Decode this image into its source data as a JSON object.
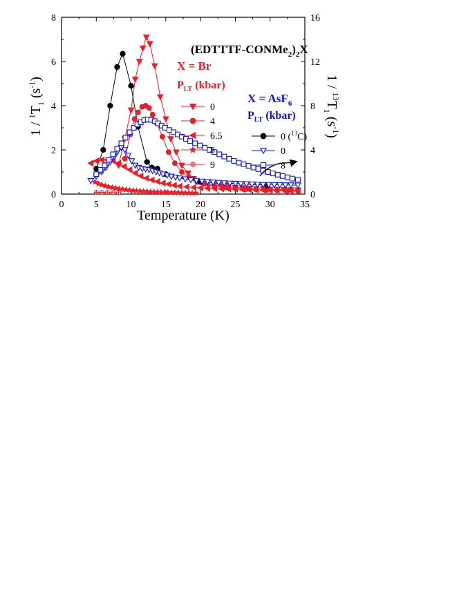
{
  "chart_data": {
    "type": "scatter",
    "title": "(EDTTTF-CONMe2)2X",
    "xlabel": "Temperature (K)",
    "ylabel": "1 / 1T1 (s-1)",
    "ylabel_right": "1 / 13T1 (s-1)",
    "xlim": [
      0,
      35
    ],
    "ylim": [
      0,
      8
    ],
    "ylim_right": [
      0,
      16
    ],
    "x_ticks": [
      "0",
      "5",
      "10",
      "15",
      "20",
      "25",
      "30",
      "35"
    ],
    "y_ticks": [
      "0",
      "2",
      "4",
      "6",
      "8"
    ],
    "y_ticks_right": [
      "0",
      "4",
      "8",
      "12",
      "16"
    ],
    "grid": false,
    "legend_groups": [
      {
        "title": "X = Br",
        "subtitle": "PLT (kbar)",
        "color": "#ee1c25"
      },
      {
        "title": "X = AsF6",
        "subtitle": "PLT (kbar)",
        "color": "#0a12e6"
      }
    ],
    "series": [
      {
        "name": "0",
        "group": "X = Br",
        "axis": "left",
        "color": "#ee1c25",
        "marker": "triangle-down",
        "filled": true,
        "x": [
          8.2,
          9.1,
          10.0,
          10.6,
          11.2,
          11.7,
          12.2,
          12.7,
          13.4,
          14.2,
          15.0,
          15.7,
          16.5,
          17.3,
          18.2,
          19.0,
          20.0,
          21.0,
          22.0,
          23.0,
          24.0,
          25.0,
          26.0,
          27.0,
          28.0,
          29.0,
          30.0,
          31.0,
          32.0,
          33.0,
          34.0
        ],
        "y": [
          1.3,
          2.5,
          3.8,
          5.2,
          6.0,
          6.6,
          7.1,
          6.8,
          5.8,
          4.4,
          3.4,
          2.5,
          1.9,
          1.3,
          0.95,
          0.7,
          0.55,
          0.45,
          0.4,
          0.36,
          0.34,
          0.3,
          0.28,
          0.26,
          0.25,
          0.24,
          0.22,
          0.21,
          0.2,
          0.19,
          0.18
        ]
      },
      {
        "name": "4",
        "group": "X = Br",
        "axis": "left",
        "color": "#ee1c25",
        "marker": "circle",
        "filled": true,
        "x": [
          9.1,
          9.9,
          10.5,
          11.0,
          11.6,
          12.1,
          12.6,
          13.1,
          13.7,
          14.5,
          15.4,
          16.3,
          17.3,
          18.3,
          19.5,
          20.5,
          22.0,
          23.5,
          25.0,
          26.5,
          28.0,
          29.5,
          31.0,
          32.5,
          34.0
        ],
        "y": [
          1.6,
          2.7,
          3.4,
          3.7,
          3.95,
          4.0,
          3.9,
          3.6,
          3.2,
          2.6,
          1.9,
          1.4,
          1.0,
          0.75,
          0.55,
          0.45,
          0.35,
          0.3,
          0.25,
          0.22,
          0.2,
          0.18,
          0.17,
          0.15,
          0.14
        ]
      },
      {
        "name": "6.5",
        "group": "X = Br",
        "axis": "left",
        "color": "#ee1c25",
        "marker": "triangle-left",
        "filled": true,
        "x": [
          4.2,
          5.0,
          5.8,
          6.6,
          7.4,
          8.2,
          9.0,
          9.8,
          10.6,
          11.4,
          12.2,
          13.0,
          13.8,
          14.6,
          15.4,
          16.2,
          17.0,
          18.0,
          19.0,
          20.0,
          21.0,
          22.0,
          23.0,
          24.0,
          25.0,
          26.0,
          27.0,
          28.0,
          29.0,
          30.0,
          31.0,
          32.0,
          33.0,
          34.0
        ],
        "y": [
          1.4,
          1.5,
          1.55,
          1.55,
          1.5,
          1.4,
          1.25,
          1.1,
          0.95,
          0.82,
          0.72,
          0.64,
          0.57,
          0.5,
          0.45,
          0.4,
          0.36,
          0.33,
          0.3,
          0.28,
          0.26,
          0.25,
          0.24,
          0.23,
          0.22,
          0.21,
          0.2,
          0.19,
          0.18,
          0.18,
          0.17,
          0.17,
          0.16,
          0.16
        ]
      },
      {
        "name": "8",
        "group": "X = Br",
        "axis": "left",
        "color": "#ee1c25",
        "marker": "star",
        "filled": true,
        "x": [
          4.8,
          5.3,
          5.8,
          6.3,
          6.8,
          7.3,
          7.8,
          8.3,
          8.8,
          9.3,
          9.8,
          10.3,
          10.8,
          11.3,
          11.8,
          12.3,
          12.8,
          13.3,
          13.8,
          14.3,
          14.8,
          15.3,
          15.8,
          16.3,
          16.8,
          17.3,
          17.8,
          18.3,
          18.8,
          19.3
        ],
        "y": [
          0.55,
          0.47,
          0.42,
          0.37,
          0.33,
          0.3,
          0.27,
          0.24,
          0.22,
          0.2,
          0.18,
          0.16,
          0.15,
          0.14,
          0.13,
          0.12,
          0.11,
          0.1,
          0.095,
          0.09,
          0.085,
          0.08,
          0.075,
          0.07,
          0.065,
          0.06,
          0.058,
          0.055,
          0.052,
          0.05
        ]
      },
      {
        "name": "9",
        "group": "X = Br",
        "axis": "left",
        "color": "#ee1c25",
        "marker": "circle-plus",
        "filled": false,
        "x": [
          5.0,
          5.8,
          6.6,
          7.4,
          8.2
        ],
        "y": [
          0.08,
          0.08,
          0.07,
          0.07,
          0.06
        ]
      },
      {
        "name": "0 (13C)",
        "group": "X = AsF6",
        "axis": "right",
        "color": "#000000",
        "marker": "circle",
        "filled": true,
        "x": [
          5.0,
          6.0,
          7.0,
          8.0,
          8.8,
          10.0,
          11.0,
          12.3,
          13.0,
          13.8,
          15.0,
          20.0,
          29.6
        ],
        "y": [
          2.3,
          4.0,
          8.0,
          11.5,
          12.7,
          9.8,
          6.1,
          2.9,
          2.4,
          2.3,
          1.8,
          1.1,
          0.8
        ]
      },
      {
        "name": "0",
        "group": "X = AsF6",
        "axis": "left",
        "color": "#0a12e6",
        "marker": "triangle-down",
        "filled": false,
        "x": [
          4.2,
          5.0,
          5.8,
          6.4,
          7.0,
          7.6,
          8.1,
          8.6,
          9.1,
          9.6,
          10.1,
          10.6,
          11.1,
          11.6,
          12.1,
          12.6,
          13.1,
          13.6,
          14.1,
          14.6,
          15.2,
          15.8,
          16.4,
          17.0,
          17.8,
          18.6,
          19.4,
          20.2,
          21.0,
          21.8,
          22.6,
          23.4,
          24.2,
          25.0,
          25.8,
          26.6,
          27.4,
          28.2,
          29.0,
          29.8,
          30.6,
          31.4,
          32.2,
          33.0,
          34.0
        ],
        "y": [
          0.6,
          0.8,
          1.0,
          1.2,
          1.45,
          1.7,
          1.95,
          2.1,
          2.0,
          1.75,
          1.5,
          1.3,
          1.2,
          1.15,
          1.12,
          1.1,
          1.05,
          1.0,
          0.95,
          0.9,
          0.85,
          0.8,
          0.76,
          0.72,
          0.68,
          0.64,
          0.61,
          0.58,
          0.56,
          0.54,
          0.52,
          0.5,
          0.49,
          0.48,
          0.47,
          0.46,
          0.45,
          0.44,
          0.43,
          0.43,
          0.42,
          0.42,
          0.41,
          0.41,
          0.4
        ]
      },
      {
        "name": "8",
        "group": "X = AsF6",
        "axis": "left",
        "color": "#0a12e6",
        "marker": "square",
        "filled": false,
        "x": [
          5.0,
          5.6,
          6.2,
          6.8,
          7.4,
          8.0,
          8.6,
          9.2,
          9.8,
          10.4,
          10.9,
          11.4,
          11.9,
          12.4,
          12.9,
          13.4,
          13.9,
          14.4,
          14.9,
          15.5,
          16.1,
          16.7,
          17.3,
          17.9,
          18.5,
          19.2,
          19.9,
          20.6,
          21.3,
          22.0,
          22.7,
          23.4,
          24.1,
          24.8,
          25.5,
          26.2,
          26.9,
          27.6,
          28.3,
          29.0,
          29.7,
          30.4,
          31.1,
          31.8,
          32.5,
          33.2,
          34.0
        ],
        "y": [
          0.9,
          1.1,
          1.3,
          1.55,
          1.8,
          2.05,
          2.3,
          2.55,
          2.8,
          3.0,
          3.15,
          3.25,
          3.35,
          3.38,
          3.36,
          3.3,
          3.2,
          3.1,
          3.0,
          2.9,
          2.8,
          2.7,
          2.6,
          2.5,
          2.4,
          2.3,
          2.2,
          2.1,
          2.0,
          1.9,
          1.8,
          1.7,
          1.6,
          1.5,
          1.42,
          1.35,
          1.28,
          1.2,
          1.13,
          1.06,
          1.0,
          0.94,
          0.88,
          0.82,
          0.76,
          0.7,
          0.65
        ]
      }
    ]
  }
}
